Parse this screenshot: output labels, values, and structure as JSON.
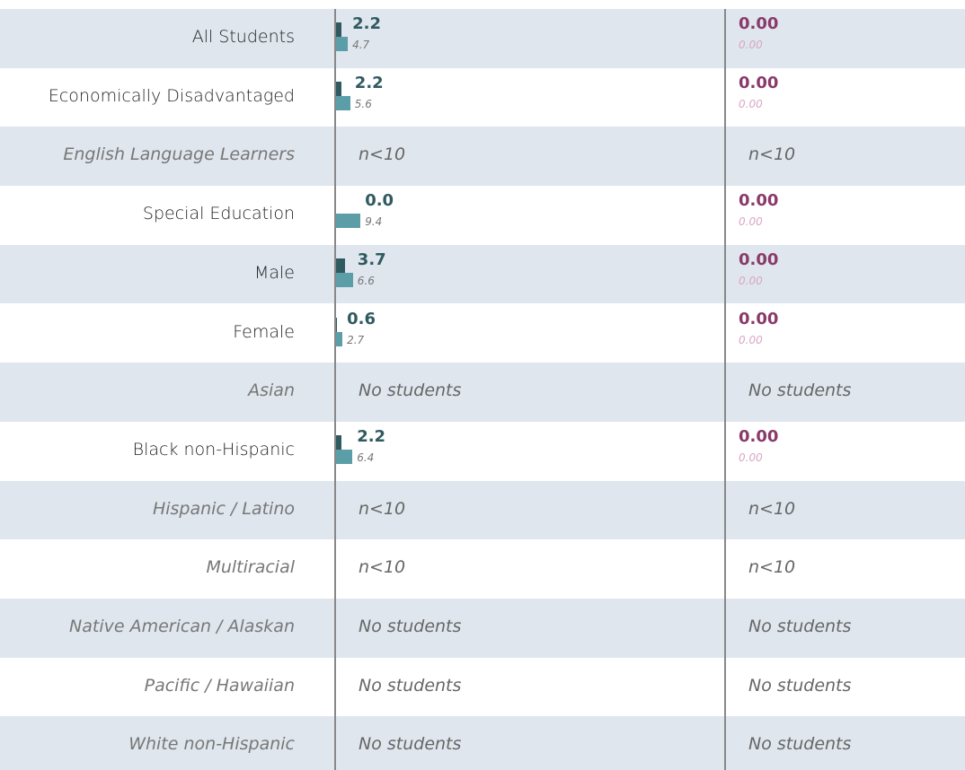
{
  "table": {
    "rows": [
      {
        "label": "All Students",
        "value": "2.2",
        "compare": "4.7",
        "rate": "0.00",
        "rate_compare": "0.00"
      },
      {
        "label": "Economically Disadvantaged",
        "value": "2.2",
        "compare": "5.6",
        "rate": "0.00",
        "rate_compare": "0.00"
      },
      {
        "label": "English Language Learners",
        "note": "n<10",
        "rate_note": "n<10"
      },
      {
        "label": "Special Education",
        "value": "0.0",
        "compare": "9.4",
        "rate": "0.00",
        "rate_compare": "0.00"
      },
      {
        "label": "Male",
        "value": "3.7",
        "compare": "6.6",
        "rate": "0.00",
        "rate_compare": "0.00"
      },
      {
        "label": "Female",
        "value": "0.6",
        "compare": "2.7",
        "rate": "0.00",
        "rate_compare": "0.00"
      },
      {
        "label": "Asian",
        "note": "No students",
        "rate_note": "No students"
      },
      {
        "label": "Black non-Hispanic",
        "value": "2.2",
        "compare": "6.4",
        "rate": "0.00",
        "rate_compare": "0.00"
      },
      {
        "label": "Hispanic / Latino",
        "note": "n<10",
        "rate_note": "n<10"
      },
      {
        "label": "Multiracial",
        "note": "n<10",
        "rate_note": "n<10"
      },
      {
        "label": "Native American / Alaskan",
        "note": "No students",
        "rate_note": "No students"
      },
      {
        "label": "Pacific / Hawaiian",
        "note": "No students",
        "rate_note": "No students"
      },
      {
        "label": "White non-Hispanic",
        "note": "No students",
        "rate_note": "No students"
      }
    ]
  }
}
